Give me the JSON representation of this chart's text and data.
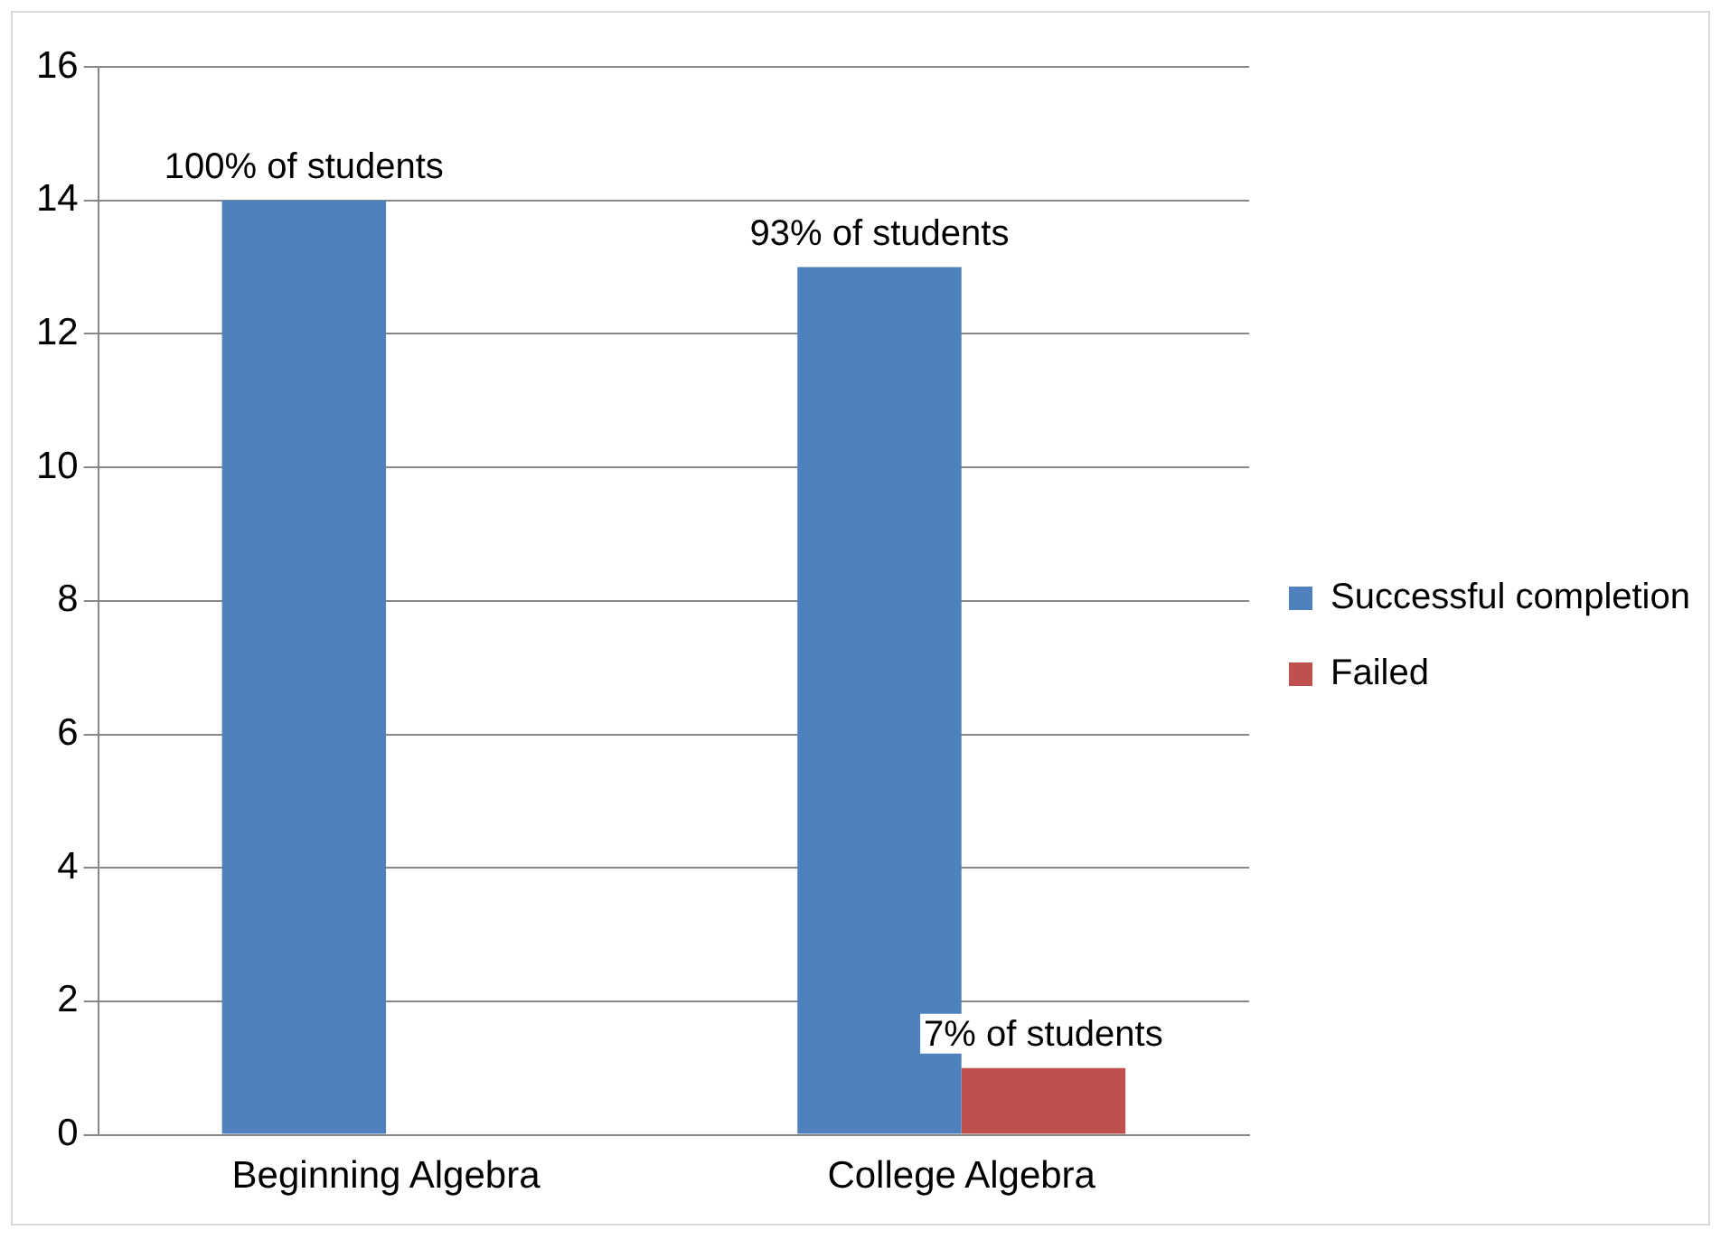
{
  "chart_data": {
    "type": "bar",
    "categories": [
      "Beginning Algebra",
      "College Algebra"
    ],
    "series": [
      {
        "name": "Successful completion",
        "color": "#4f81bd",
        "values": [
          14,
          13
        ]
      },
      {
        "name": "Failed",
        "color": "#c0504d",
        "values": [
          0,
          1
        ]
      }
    ],
    "annotations": [
      {
        "text": "100% of students",
        "x": "Beginning Algebra",
        "y": 14
      },
      {
        "text": "93% of students",
        "x": "College Algebra",
        "y": 13
      },
      {
        "text": "7% of students",
        "x": "College Algebra",
        "y": 1
      }
    ],
    "ylim": [
      0,
      16
    ],
    "yticks": [
      0,
      2,
      4,
      6,
      8,
      10,
      12,
      14,
      16
    ],
    "grid": "y",
    "legend": "right"
  }
}
